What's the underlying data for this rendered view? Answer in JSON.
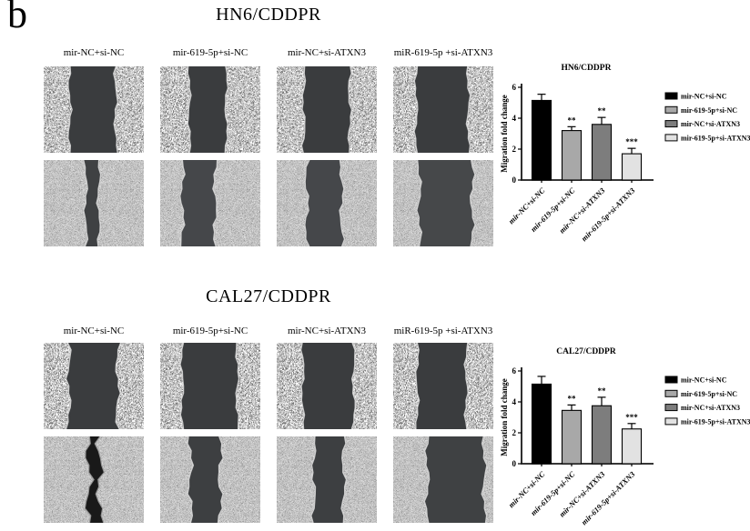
{
  "figure_label": "b",
  "colors": {
    "background": "#ffffff",
    "text": "#000000",
    "axis": "#1a1a1a",
    "bar_fills": [
      "#000000",
      "#a8a8a8",
      "#7d7d7d",
      "#e2e2e2"
    ]
  },
  "panels": [
    {
      "title": "HN6/CDDPR",
      "column_labels": [
        "mir-NC+si-NC",
        "mir-619-5p+si-NC",
        "mir-NC+si-ATXN3",
        "miR-619-5p +si-ATXN3"
      ],
      "micrographs": [
        {
          "row": 0,
          "col": 0,
          "gap": [
            0.26,
            0.72
          ],
          "texture": "bright",
          "wound": "#3a3c3e",
          "amp": 1.6,
          "seed": 1
        },
        {
          "row": 0,
          "col": 1,
          "gap": [
            0.29,
            0.66
          ],
          "texture": "bright",
          "wound": "#3a3c3e",
          "amp": 1.4,
          "seed": 2
        },
        {
          "row": 0,
          "col": 2,
          "gap": [
            0.27,
            0.73
          ],
          "texture": "bright",
          "wound": "#3a3c3e",
          "amp": 1.6,
          "seed": 3
        },
        {
          "row": 0,
          "col": 3,
          "gap": [
            0.23,
            0.75
          ],
          "texture": "bright",
          "wound": "#3a3c3e",
          "amp": 1.5,
          "seed": 4
        },
        {
          "row": 1,
          "col": 0,
          "gap": [
            0.42,
            0.55
          ],
          "texture": "med",
          "wound": "#3f4143",
          "amp": 1.6,
          "seed": 5
        },
        {
          "row": 1,
          "col": 1,
          "gap": [
            0.22,
            0.55
          ],
          "texture": "med",
          "wound": "#45474a",
          "amp": 2.0,
          "seed": 6
        },
        {
          "row": 1,
          "col": 2,
          "gap": [
            0.3,
            0.65
          ],
          "texture": "med",
          "wound": "#45474a",
          "amp": 2.0,
          "seed": 7
        },
        {
          "row": 1,
          "col": 3,
          "gap": [
            0.26,
            0.79
          ],
          "texture": "med",
          "wound": "#46484a",
          "amp": 2.0,
          "seed": 8
        }
      ]
    },
    {
      "title": "CAL27/CDDPR",
      "column_labels": [
        "mir-NC+si-NC",
        "mir-619-5p+si-NC",
        "mir-NC+si-ATXN3",
        "miR-619-5p +si-ATXN3"
      ],
      "micrographs": [
        {
          "row": 0,
          "col": 0,
          "gap": [
            0.25,
            0.74
          ],
          "texture": "bright",
          "wound": "#3a3c3e",
          "amp": 2.0,
          "seed": 9
        },
        {
          "row": 0,
          "col": 1,
          "gap": [
            0.22,
            0.77
          ],
          "texture": "bright",
          "wound": "#3a3c3e",
          "amp": 1.5,
          "seed": 10
        },
        {
          "row": 0,
          "col": 2,
          "gap": [
            0.26,
            0.77
          ],
          "texture": "bright",
          "wound": "#3a3c3e",
          "amp": 1.5,
          "seed": 11
        },
        {
          "row": 0,
          "col": 3,
          "gap": [
            0.24,
            0.73
          ],
          "texture": "bright",
          "wound": "#3a3c3e",
          "amp": 1.5,
          "seed": 12
        },
        {
          "row": 1,
          "col": 0,
          "gap": [
            0.45,
            0.56
          ],
          "texture": "med",
          "wound": "#191919",
          "amp": 3.5,
          "seed": 13,
          "edge": "#9a9a9a"
        },
        {
          "row": 1,
          "col": 1,
          "gap": [
            0.3,
            0.6
          ],
          "texture": "med",
          "wound": "#3d3f41",
          "amp": 2.4,
          "seed": 14
        },
        {
          "row": 1,
          "col": 2,
          "gap": [
            0.37,
            0.67
          ],
          "texture": "med",
          "wound": "#3d3f41",
          "amp": 2.0,
          "seed": 15
        },
        {
          "row": 1,
          "col": 3,
          "gap": [
            0.34,
            0.91
          ],
          "texture": "med",
          "wound": "#3f4143",
          "amp": 2.0,
          "seed": 16
        }
      ]
    }
  ],
  "chart_data": [
    {
      "type": "bar",
      "title": "HN6/CDDPR",
      "categories": [
        "mir-NC+si-NC",
        "mir-619-5p+si-NC",
        "mir-NC+si-ATXN3",
        "mir-619-5p+si-ATXN3"
      ],
      "values": [
        5.15,
        3.2,
        3.6,
        1.7
      ],
      "errors": [
        0.4,
        0.25,
        0.45,
        0.35
      ],
      "significance": [
        "",
        "**",
        "**",
        "***"
      ],
      "xlabel": "",
      "ylabel": "Migration fold change",
      "ylim": [
        0,
        6
      ],
      "yticks": [
        0,
        2,
        4,
        6
      ],
      "grid": false,
      "legend": [
        "mir-NC+si-NC",
        "mir-619-5p+si-NC",
        "mir-NC+si-ATXN3",
        "mir-619-5p+si-ATXN3"
      ],
      "legend_position": "right"
    },
    {
      "type": "bar",
      "title": "CAL27/CDDPR",
      "categories": [
        "mir-NC+si-NC",
        "mir-619-5p+si-NC",
        "mir-NC+si-ATXN3",
        "mir-619-5p+si-ATXN3"
      ],
      "values": [
        5.15,
        3.45,
        3.75,
        2.25
      ],
      "errors": [
        0.5,
        0.35,
        0.55,
        0.35
      ],
      "significance": [
        "",
        "**",
        "**",
        "***"
      ],
      "xlabel": "",
      "ylabel": "Migration fold change",
      "ylim": [
        0,
        6
      ],
      "yticks": [
        0,
        2,
        4,
        6
      ],
      "grid": false,
      "legend": [
        "mir-NC+si-NC",
        "mir-619-5p+si-NC",
        "mir-NC+si-ATXN3",
        "mir-619-5p+si-ATXN3"
      ],
      "legend_position": "right"
    }
  ]
}
